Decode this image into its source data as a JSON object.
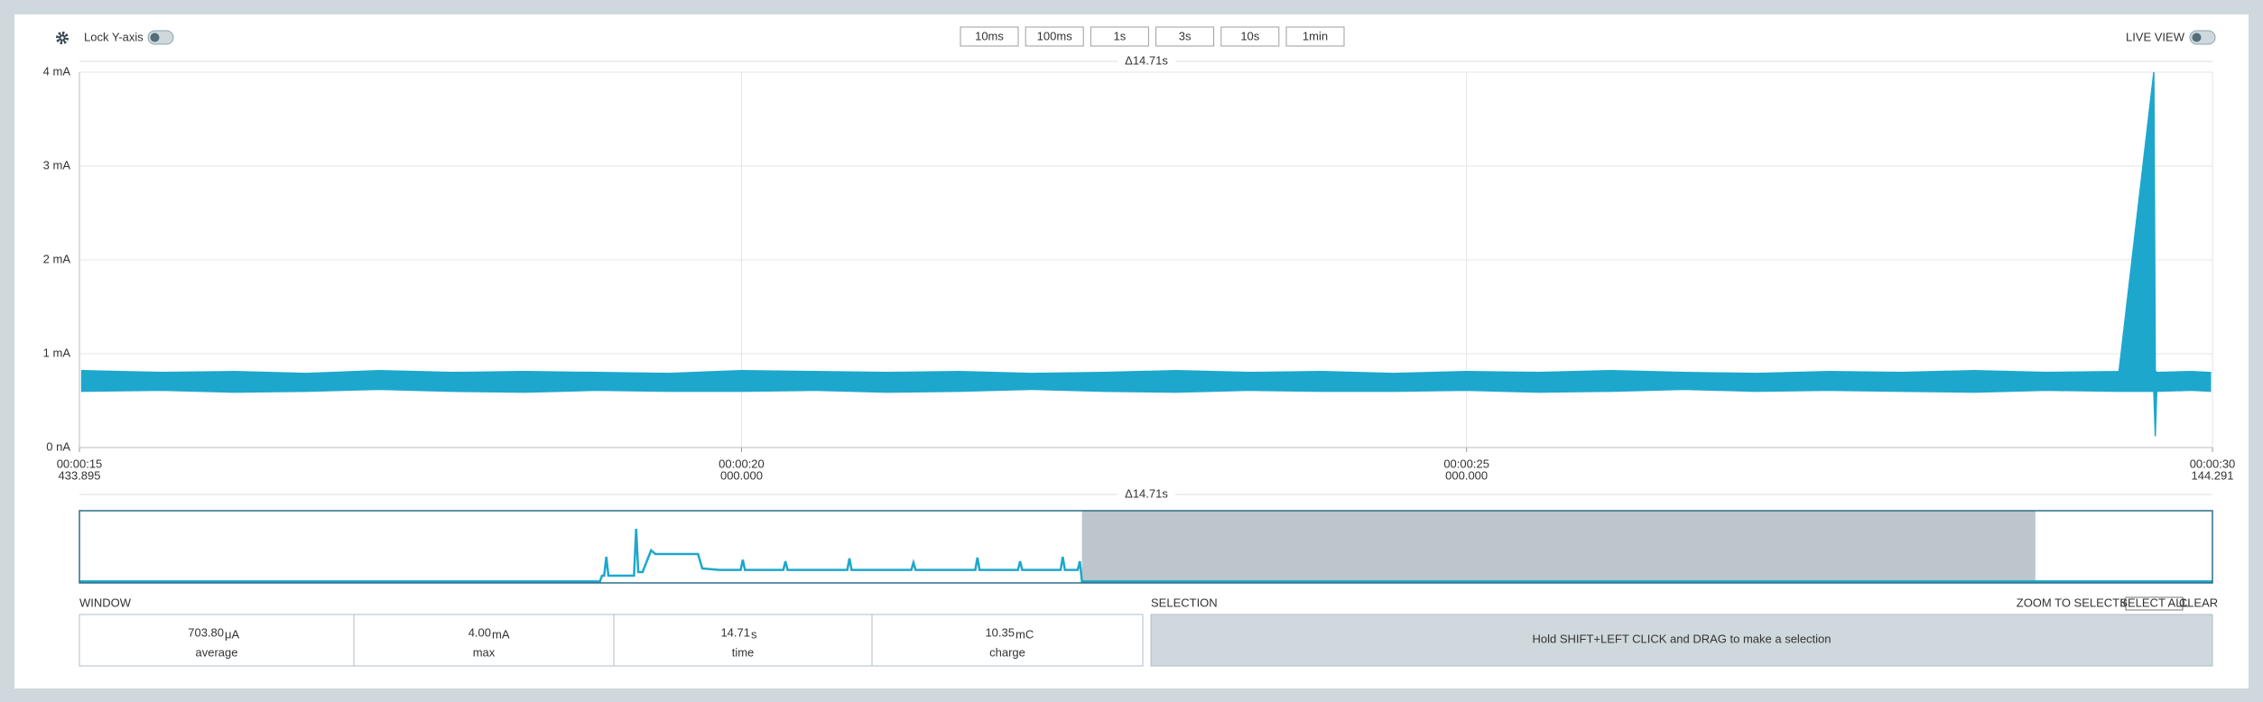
{
  "toolbar": {
    "lock_label": "Lock Y-axis",
    "zoom_buttons": [
      "10ms",
      "100ms",
      "1s",
      "3s",
      "10s",
      "1min"
    ],
    "live_view": "LIVE VIEW"
  },
  "chart_data": {
    "type": "band",
    "delta": "Δ14.71s",
    "color": "#1ea7cc",
    "grid": true,
    "xlim": [
      15.433895,
      30.144291
    ],
    "xticks": [
      {
        "value": 15.433895,
        "label": "00:00:15",
        "sublabel": "433.895"
      },
      {
        "value": 20,
        "label": "00:00:20",
        "sublabel": "000.000"
      },
      {
        "value": 25,
        "label": "00:00:25",
        "sublabel": "000.000"
      },
      {
        "value": 30.144291,
        "label": "00:00:30",
        "sublabel": "144.291"
      }
    ],
    "ylim": [
      0,
      4
    ],
    "yticks": [
      {
        "value": 0,
        "label": "0 nA"
      },
      {
        "value": 1,
        "label": "1 mA"
      },
      {
        "value": 2,
        "label": "2 mA"
      },
      {
        "value": 3,
        "label": "3 mA"
      },
      {
        "value": 4,
        "label": "4 mA"
      }
    ],
    "x": [
      15.45,
      16,
      16.5,
      17,
      17.5,
      18,
      18.5,
      19,
      19.5,
      20,
      20.5,
      21,
      21.5,
      22,
      22.5,
      23,
      23.5,
      24,
      24.5,
      25,
      25.5,
      26,
      26.5,
      27,
      27.5,
      28,
      28.5,
      29,
      29.5,
      29.74,
      29.75,
      29.76,
      30,
      30.13
    ],
    "upper": [
      0.82,
      0.8,
      0.81,
      0.79,
      0.82,
      0.8,
      0.81,
      0.8,
      0.79,
      0.82,
      0.81,
      0.8,
      0.81,
      0.79,
      0.8,
      0.82,
      0.8,
      0.81,
      0.79,
      0.81,
      0.8,
      0.82,
      0.8,
      0.79,
      0.81,
      0.8,
      0.82,
      0.8,
      0.81,
      4.0,
      0.82,
      0.8,
      0.81,
      0.8
    ],
    "lower": [
      0.6,
      0.61,
      0.59,
      0.6,
      0.62,
      0.6,
      0.59,
      0.61,
      0.6,
      0.6,
      0.61,
      0.59,
      0.6,
      0.62,
      0.6,
      0.59,
      0.61,
      0.6,
      0.6,
      0.61,
      0.59,
      0.6,
      0.62,
      0.6,
      0.61,
      0.6,
      0.59,
      0.61,
      0.6,
      0.6,
      0.12,
      0.6,
      0.61,
      0.6
    ]
  },
  "overview": {
    "delta": "Δ14.71s",
    "color": "#1ea7cc",
    "xlim": [
      0,
      1
    ],
    "ylim": [
      0,
      1
    ],
    "window": [
      0.47,
      0.917
    ],
    "x": [
      0,
      0.244,
      0.245,
      0.246,
      0.247,
      0.248,
      0.26,
      0.261,
      0.262,
      0.264,
      0.268,
      0.27,
      0.29,
      0.292,
      0.3,
      0.31,
      0.311,
      0.312,
      0.33,
      0.331,
      0.332,
      0.36,
      0.361,
      0.362,
      0.39,
      0.391,
      0.392,
      0.42,
      0.421,
      0.422,
      0.44,
      0.441,
      0.442,
      0.46,
      0.461,
      0.462,
      0.468,
      0.469,
      0.47,
      1
    ],
    "values": [
      0.02,
      0.02,
      0.1,
      0.1,
      0.36,
      0.1,
      0.1,
      0.75,
      0.15,
      0.15,
      0.45,
      0.4,
      0.4,
      0.2,
      0.18,
      0.18,
      0.32,
      0.18,
      0.18,
      0.3,
      0.18,
      0.18,
      0.34,
      0.18,
      0.18,
      0.28,
      0.18,
      0.18,
      0.35,
      0.18,
      0.18,
      0.3,
      0.18,
      0.18,
      0.36,
      0.18,
      0.18,
      0.3,
      0.02,
      0.02
    ]
  },
  "window_stats": {
    "title": "WINDOW",
    "items": [
      {
        "value": "703.80",
        "unit": "μA",
        "label": "average"
      },
      {
        "value": "4.00",
        "unit": "mA",
        "label": "max"
      },
      {
        "value": "14.71",
        "unit": "s",
        "label": "time"
      },
      {
        "value": "10.35",
        "unit": "mC",
        "label": "charge"
      }
    ]
  },
  "selection": {
    "title": "SELECTION",
    "buttons": [
      "ZOOM TO SELECTION",
      "SELECT ALL",
      "CLEAR"
    ],
    "hint": "Hold SHIFT+LEFT CLICK and DRAG to make a selection"
  }
}
